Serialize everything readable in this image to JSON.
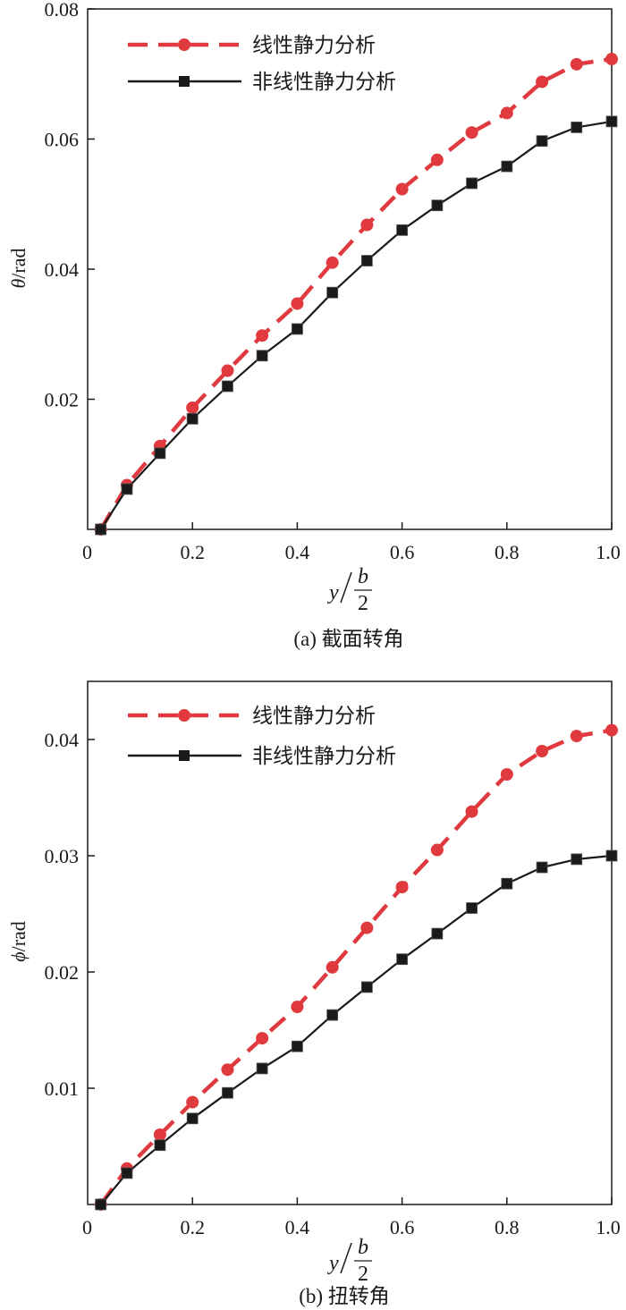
{
  "chart_data": [
    {
      "type": "line",
      "caption": "(a) 截面转角",
      "ylabel_symbol": "θ",
      "ylabel_unit": "/rad",
      "xlabel_var": "y",
      "xlabel_num": "b",
      "xlabel_den": "2",
      "xlim": [
        0,
        1.0
      ],
      "ylim": [
        0,
        0.08
      ],
      "xticks": [
        0.2,
        0.4,
        0.6,
        0.8,
        1.0
      ],
      "xtick_labels": [
        "0.2",
        "0.4",
        "0.6",
        "0.8",
        "1.0"
      ],
      "origin_label": "0",
      "yticks": [
        0.02,
        0.04,
        0.06,
        0.08
      ],
      "ytick_labels": [
        "0.02",
        "0.04",
        "0.06",
        "0.08"
      ],
      "x": [
        0.025,
        0.075,
        0.138,
        0.2,
        0.267,
        0.333,
        0.4,
        0.467,
        0.533,
        0.6,
        0.667,
        0.733,
        0.8,
        0.867,
        0.933,
        1.0
      ],
      "series": [
        {
          "name": "线性静力分析",
          "color": "#e03a3e",
          "style": "dashed",
          "marker": "circle",
          "values": [
            0.0,
            0.0068,
            0.0128,
            0.0187,
            0.0244,
            0.0298,
            0.0347,
            0.041,
            0.0468,
            0.0523,
            0.0568,
            0.061,
            0.064,
            0.0688,
            0.0715,
            0.0723
          ]
        },
        {
          "name": "非线性静力分析",
          "color": "#1a1a1a",
          "style": "solid",
          "marker": "square",
          "values": [
            0.0,
            0.0062,
            0.0117,
            0.017,
            0.022,
            0.0267,
            0.0308,
            0.0364,
            0.0413,
            0.046,
            0.0498,
            0.0532,
            0.0558,
            0.0597,
            0.0618,
            0.0627
          ]
        }
      ]
    },
    {
      "type": "line",
      "caption": "(b) 扭转角",
      "ylabel_symbol": "ϕ",
      "ylabel_unit": "/rad",
      "xlabel_var": "y",
      "xlabel_num": "b",
      "xlabel_den": "2",
      "xlim": [
        0,
        1.0
      ],
      "ylim": [
        0,
        0.045
      ],
      "xticks": [
        0.2,
        0.4,
        0.6,
        0.8,
        1.0
      ],
      "xtick_labels": [
        "0.2",
        "0.4",
        "0.6",
        "0.8",
        "1.0"
      ],
      "origin_label": "0",
      "yticks": [
        0.01,
        0.02,
        0.03,
        0.04
      ],
      "ytick_labels": [
        "0.01",
        "0.02",
        "0.03",
        "0.04"
      ],
      "x": [
        0.025,
        0.075,
        0.138,
        0.2,
        0.267,
        0.333,
        0.4,
        0.467,
        0.533,
        0.6,
        0.667,
        0.733,
        0.8,
        0.867,
        0.933,
        1.0
      ],
      "series": [
        {
          "name": "线性静力分析",
          "color": "#e03a3e",
          "style": "dashed",
          "marker": "circle",
          "values": [
            0.0,
            0.0031,
            0.006,
            0.0088,
            0.0116,
            0.0143,
            0.017,
            0.0204,
            0.0238,
            0.0273,
            0.0305,
            0.0338,
            0.037,
            0.039,
            0.0403,
            0.0408
          ]
        },
        {
          "name": "非线性静力分析",
          "color": "#1a1a1a",
          "style": "solid",
          "marker": "square",
          "values": [
            0.0,
            0.0027,
            0.0051,
            0.0074,
            0.0096,
            0.0117,
            0.0136,
            0.0163,
            0.0187,
            0.0211,
            0.0233,
            0.0255,
            0.0276,
            0.029,
            0.0297,
            0.03
          ]
        }
      ]
    }
  ]
}
